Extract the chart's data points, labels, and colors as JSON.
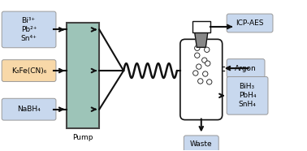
{
  "bg_color": "#ffffff",
  "box_blue": "#c8d8ee",
  "box_orange": "#f8d8a8",
  "pump_color": "#9dc4b8",
  "pump_border": "#444444",
  "lc": "#111111",
  "lw": 1.5,
  "fs": 6.5,
  "box1_text": "Bi³⁺\nPb²⁺\nSn⁴⁺",
  "box2_text": "K₃Fe(CN)₆",
  "box3_text": "NaBH₄",
  "pump_text": "Pump",
  "icp_text": "ICP-AES",
  "argon_text": "Argon",
  "hydride_text": "BiH₃\nPbH₄\nSnH₄",
  "waste_text": "Waste"
}
